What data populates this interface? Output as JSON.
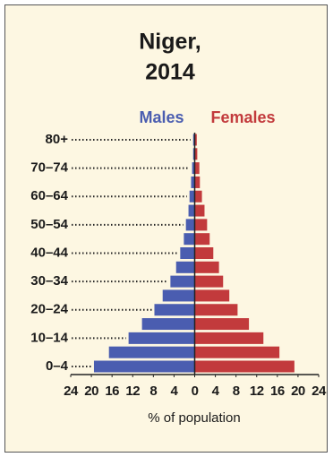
{
  "chart_data": {
    "type": "pyramid",
    "title": [
      "Niger,",
      "2014"
    ],
    "x_label": "% of population",
    "categories": [
      "0–4",
      null,
      "10–14",
      null,
      "20–24",
      null,
      "30–34",
      null,
      "40–44",
      null,
      "50–54",
      null,
      "60–64",
      null,
      "70–74",
      null,
      "80+"
    ],
    "series": [
      {
        "name": "Males",
        "color": "#4a5db0",
        "side": "left",
        "values": [
          19.5,
          16.6,
          12.8,
          10.2,
          7.8,
          6.2,
          4.7,
          3.6,
          2.8,
          2.1,
          1.7,
          1.2,
          1.0,
          0.7,
          0.5,
          0.3,
          0.3
        ]
      },
      {
        "name": "Females",
        "color": "#c23a3c",
        "side": "right",
        "values": [
          19.3,
          16.4,
          13.3,
          10.5,
          8.3,
          6.7,
          5.5,
          4.7,
          3.6,
          2.9,
          2.4,
          1.9,
          1.4,
          1.0,
          0.9,
          0.5,
          0.4
        ]
      }
    ],
    "xlim": [
      -24,
      24
    ],
    "xticks": [
      {
        "value": -24,
        "label": "24"
      },
      {
        "value": -20,
        "label": "20"
      },
      {
        "value": -16,
        "label": "16"
      },
      {
        "value": -12,
        "label": "12"
      },
      {
        "value": -8,
        "label": "8"
      },
      {
        "value": -4,
        "label": "4"
      },
      0,
      4,
      8,
      12,
      16,
      20,
      24
    ]
  }
}
